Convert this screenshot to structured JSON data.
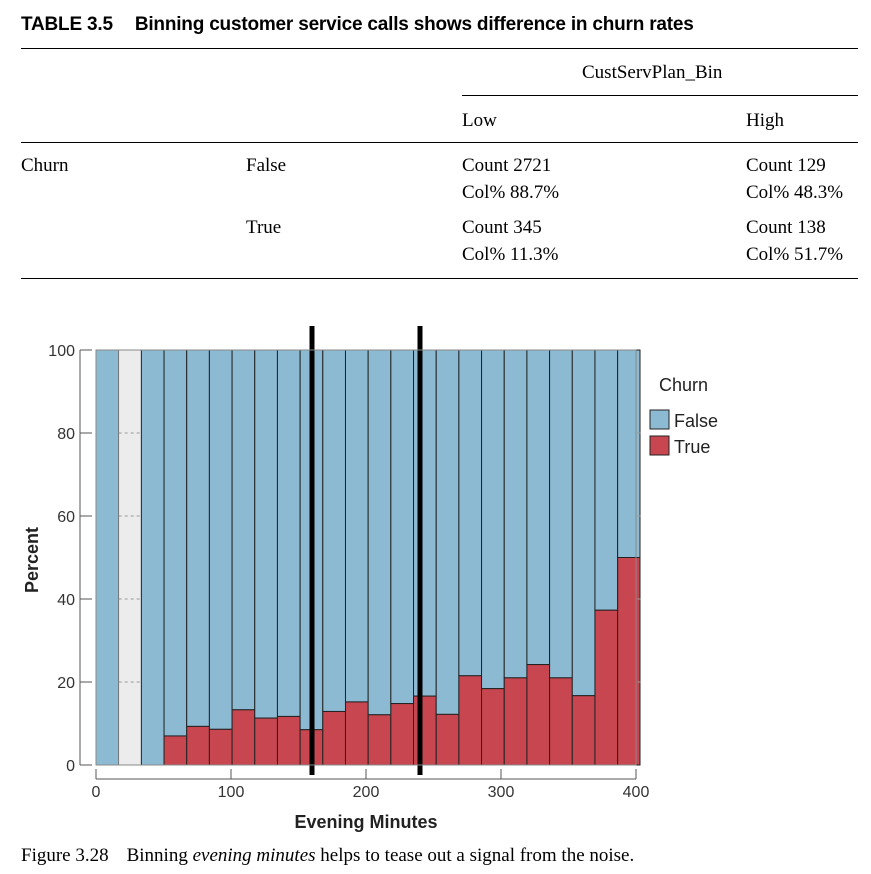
{
  "table": {
    "number": "TABLE 3.5",
    "title": "Binning customer service calls shows difference in churn rates",
    "spanning_header": "CustServPlan_Bin",
    "columns": [
      "Low",
      "High"
    ],
    "row_variable": "Churn",
    "rows": [
      {
        "label": "False",
        "low_count": "Count 2721",
        "low_colpct": "Col% 88.7%",
        "high_count": "Count 129",
        "high_colpct": "Col% 48.3%"
      },
      {
        "label": "True",
        "low_count": "Count 345",
        "low_colpct": "Col% 11.3%",
        "high_count": "Count 138",
        "high_colpct": "Col% 51.7%"
      }
    ]
  },
  "chart_data": {
    "type": "bar",
    "stacked": true,
    "xlabel": "Evening Minutes",
    "ylabel": "Percent",
    "xlim": [
      0,
      400
    ],
    "ylim": [
      0,
      100
    ],
    "xticks": [
      "0",
      "100",
      "200",
      "300",
      "400"
    ],
    "yticks": [
      "0",
      "20",
      "40",
      "60",
      "80",
      "100"
    ],
    "bin_width": 16.8,
    "bins": [
      {
        "x0": 0,
        "true_pct": 0,
        "has_data": true
      },
      {
        "x0": 16.8,
        "true_pct": 0,
        "has_data": false
      },
      {
        "x0": 33.6,
        "true_pct": 0,
        "has_data": true
      },
      {
        "x0": 50.4,
        "true_pct": 7,
        "has_data": true
      },
      {
        "x0": 67.2,
        "true_pct": 9.3,
        "has_data": true
      },
      {
        "x0": 84.0,
        "true_pct": 8.6,
        "has_data": true
      },
      {
        "x0": 100.8,
        "true_pct": 13.3,
        "has_data": true
      },
      {
        "x0": 117.6,
        "true_pct": 11.3,
        "has_data": true
      },
      {
        "x0": 134.4,
        "true_pct": 11.7,
        "has_data": true
      },
      {
        "x0": 151.2,
        "true_pct": 8.5,
        "has_data": true
      },
      {
        "x0": 168.0,
        "true_pct": 12.9,
        "has_data": true
      },
      {
        "x0": 184.8,
        "true_pct": 15.2,
        "has_data": true
      },
      {
        "x0": 201.6,
        "true_pct": 12.1,
        "has_data": true
      },
      {
        "x0": 218.4,
        "true_pct": 14.8,
        "has_data": true
      },
      {
        "x0": 235.2,
        "true_pct": 16.6,
        "has_data": true
      },
      {
        "x0": 252.0,
        "true_pct": 12.2,
        "has_data": true
      },
      {
        "x0": 268.8,
        "true_pct": 21.5,
        "has_data": true
      },
      {
        "x0": 285.6,
        "true_pct": 18.4,
        "has_data": true
      },
      {
        "x0": 302.4,
        "true_pct": 21.0,
        "has_data": true
      },
      {
        "x0": 319.2,
        "true_pct": 24.2,
        "has_data": true
      },
      {
        "x0": 336.0,
        "true_pct": 21.0,
        "has_data": true
      },
      {
        "x0": 352.8,
        "true_pct": 16.7,
        "has_data": true
      },
      {
        "x0": 369.6,
        "true_pct": 37.3,
        "has_data": true
      },
      {
        "x0": 386.4,
        "true_pct": 50.0,
        "has_data": true
      },
      {
        "x0": 403.2,
        "true_pct": 0,
        "has_data": false
      }
    ],
    "cut_points": [
      160,
      240
    ],
    "legend": {
      "title": "Churn",
      "placement": "right",
      "entries": [
        {
          "name": "False",
          "color": "#8dbad3"
        },
        {
          "name": "True",
          "color": "#c8464f"
        }
      ]
    },
    "grid": "dashed horizontal in empty bins"
  },
  "figure_caption": {
    "number": "Figure 3.28",
    "before": "Binning ",
    "emph": "evening minutes",
    "after": " helps to tease out a signal from the noise."
  }
}
